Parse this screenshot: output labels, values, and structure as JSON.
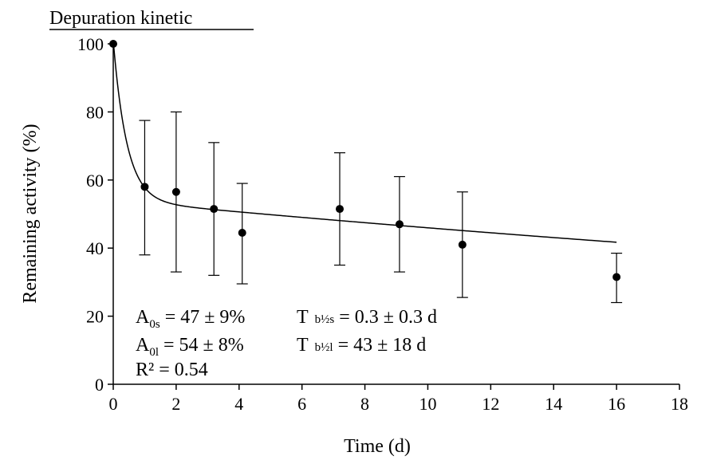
{
  "chart_data": {
    "type": "scatter",
    "title": "Depuration kinetic",
    "xlabel": "Time (d)",
    "ylabel": "Remaining activity (%)",
    "xlim": [
      0,
      18
    ],
    "ylim": [
      0,
      100
    ],
    "x_ticks": [
      "0",
      "2",
      "4",
      "6",
      "8",
      "10",
      "12",
      "14",
      "16",
      "18"
    ],
    "y_ticks": [
      "0",
      "20",
      "40",
      "60",
      "80",
      "100"
    ],
    "grid": false,
    "legend": "none",
    "points": [
      {
        "x": 0,
        "y": 100,
        "err_low": 100,
        "err_high": 100
      },
      {
        "x": 1,
        "y": 58,
        "err_low": 38,
        "err_high": 77.5
      },
      {
        "x": 2,
        "y": 56.5,
        "err_low": 33,
        "err_high": 80
      },
      {
        "x": 3.2,
        "y": 51.5,
        "err_low": 32,
        "err_high": 71
      },
      {
        "x": 4.1,
        "y": 44.5,
        "err_low": 29.5,
        "err_high": 59
      },
      {
        "x": 7.2,
        "y": 51.5,
        "err_low": 35,
        "err_high": 68
      },
      {
        "x": 9.1,
        "y": 47,
        "err_low": 33,
        "err_high": 61
      },
      {
        "x": 11.1,
        "y": 41,
        "err_low": 25.5,
        "err_high": 56.5
      },
      {
        "x": 16,
        "y": 31.5,
        "err_low": 24,
        "err_high": 38.5
      }
    ],
    "fit": {
      "model": "two-compartment exponential",
      "A0s": 47,
      "A0l": 54,
      "Tbs": 0.3,
      "Tbl": 43,
      "x_range": [
        0,
        16
      ]
    },
    "annotations": {
      "a0s": {
        "A": "A",
        "sub": "0s",
        "rest": " = 47 ± 9%",
        "T": "T",
        "tsub": "b½s",
        "trest": " = 0.3 ± 0.3 d"
      },
      "a0l": {
        "A": "A",
        "sub": "0l",
        "rest": " = 54 ± 8%",
        "T": "T",
        "tsub": "b½l",
        "trest": " = 43 ± 18 d"
      },
      "r2": "R² = 0.54"
    }
  }
}
